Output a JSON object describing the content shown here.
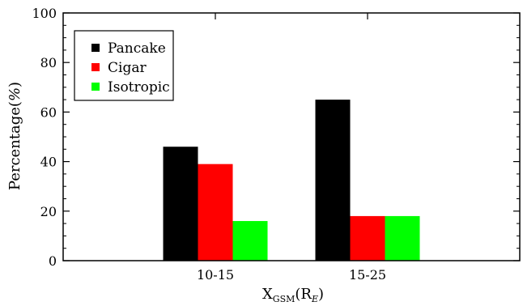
{
  "chart_data": {
    "type": "bar",
    "categories": [
      "10-15",
      "15-25"
    ],
    "series": [
      {
        "name": "Pancake",
        "values": [
          46,
          65
        ],
        "color": "#000000"
      },
      {
        "name": "Cigar",
        "values": [
          39,
          18
        ],
        "color": "#ff0000"
      },
      {
        "name": "Isotropic",
        "values": [
          16,
          18
        ],
        "color": "#00ff00"
      }
    ],
    "ylim": [
      0,
      100
    ],
    "yticks": [
      0,
      20,
      40,
      60,
      80,
      100
    ],
    "ylabel": {
      "main": "Percentage(",
      "italic": "%",
      "close": ")"
    },
    "xlabel": {
      "x": "X",
      "gsm": "GSM",
      "open": "(R",
      "e": "E",
      "close": ")"
    },
    "grid": false,
    "legend_position": "top-left"
  }
}
